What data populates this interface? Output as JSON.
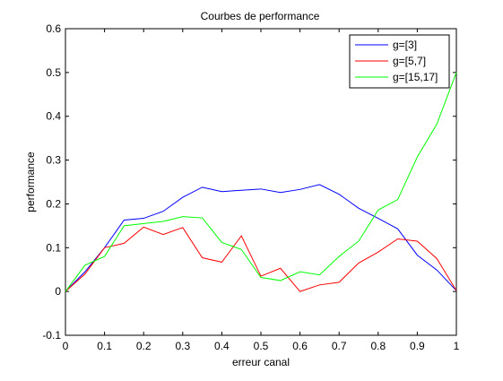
{
  "chart_data": {
    "type": "line",
    "title": "Courbes de performance",
    "xlabel": "erreur canal",
    "ylabel": "performance",
    "xlim": [
      0,
      1
    ],
    "ylim": [
      -0.1,
      0.6
    ],
    "xticks": [
      "0",
      "0.1",
      "0.2",
      "0.3",
      "0.4",
      "0.5",
      "0.6",
      "0.7",
      "0.8",
      "0.9",
      "1"
    ],
    "yticks": [
      "-0.1",
      "0",
      "0.1",
      "0.2",
      "0.3",
      "0.4",
      "0.5",
      "0.6"
    ],
    "grid": false,
    "legend_position": "top-right",
    "x": [
      0,
      0.05,
      0.1,
      0.15,
      0.2,
      0.25,
      0.3,
      0.35,
      0.4,
      0.45,
      0.5,
      0.55,
      0.6,
      0.65,
      0.7,
      0.75,
      0.8,
      0.85,
      0.9,
      0.95,
      1
    ],
    "series": [
      {
        "name": "g=[3]",
        "color": "#0000ff",
        "values": [
          0,
          0.045,
          0.1,
          0.163,
          0.167,
          0.183,
          0.215,
          0.238,
          0.228,
          0.231,
          0.234,
          0.226,
          0.233,
          0.244,
          0.222,
          0.19,
          0.167,
          0.143,
          0.083,
          0.049,
          0.002
        ]
      },
      {
        "name": "g=[5,7]",
        "color": "#ff0000",
        "values": [
          0,
          0.04,
          0.1,
          0.11,
          0.147,
          0.13,
          0.146,
          0.077,
          0.067,
          0.127,
          0.035,
          0.053,
          0,
          0.015,
          0.021,
          0.065,
          0.09,
          0.12,
          0.115,
          0.075,
          0.002
        ]
      },
      {
        "name": "g=[15,17]",
        "color": "#00ff00",
        "values": [
          0,
          0.06,
          0.08,
          0.15,
          0.155,
          0.16,
          0.171,
          0.168,
          0.112,
          0.096,
          0.032,
          0.025,
          0.045,
          0.038,
          0.08,
          0.115,
          0.186,
          0.21,
          0.307,
          0.382,
          0.5
        ]
      }
    ]
  }
}
